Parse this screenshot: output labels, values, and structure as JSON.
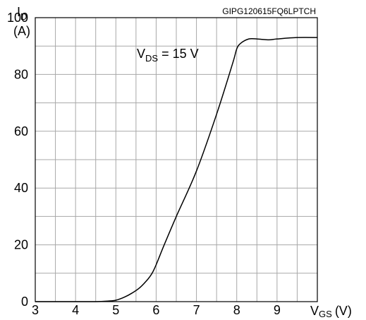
{
  "chart_data": {
    "type": "line",
    "ylabel_main": "I",
    "ylabel_sub": "D",
    "yunit": "(A)",
    "xlabel_main": "V",
    "xlabel_sub": "GS",
    "xunit": "(V)",
    "code": "GIPG120615FQ6LPTCH",
    "annotation": {
      "main": "V",
      "sub": "DS",
      "rest": " = 15 V"
    },
    "xlim": [
      3,
      10
    ],
    "ylim": [
      0,
      100
    ],
    "x_ticks": [
      3,
      4,
      5,
      6,
      7,
      8,
      9
    ],
    "y_ticks": [
      0,
      20,
      40,
      60,
      80,
      100
    ],
    "grid": true,
    "series": [
      {
        "x": [
          3.0,
          4.0,
          4.5,
          4.8,
          5.0,
          5.2,
          5.4,
          5.6,
          5.8,
          5.9,
          6.0,
          6.2,
          6.5,
          7.0,
          7.5,
          7.9,
          8.0,
          8.1,
          8.3,
          8.5,
          8.8,
          9.0,
          9.5,
          10.0
        ],
        "y": [
          0,
          0,
          0,
          0.2,
          0.5,
          1.5,
          3,
          5,
          8,
          10,
          13,
          20,
          30,
          46,
          66,
          84,
          89,
          91,
          92.5,
          92.5,
          92.2,
          92.5,
          93,
          93
        ]
      }
    ]
  }
}
